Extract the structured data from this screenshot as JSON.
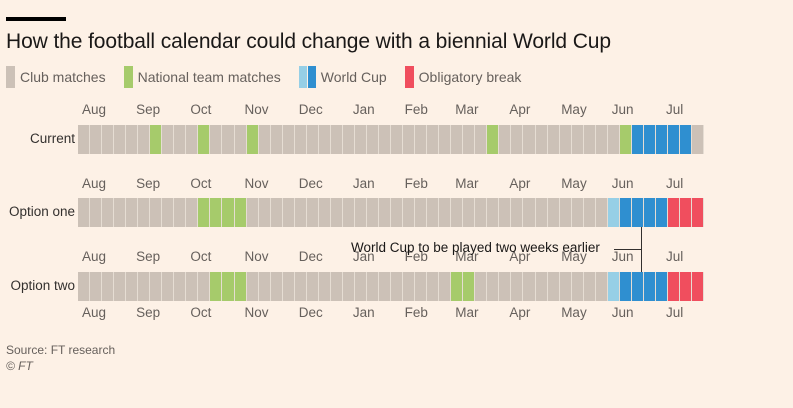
{
  "title": "How the football calendar could change with a biennial World Cup",
  "legend": [
    {
      "key": "club",
      "label": "Club matches",
      "colors": [
        "#ccc1b7"
      ]
    },
    {
      "key": "national",
      "label": "National team matches",
      "colors": [
        "#a6cb6b"
      ]
    },
    {
      "key": "worldcup",
      "label": "World Cup",
      "colors": [
        "#96cfe6",
        "#2f8fd0"
      ]
    },
    {
      "key": "break",
      "label": "Obligatory break",
      "colors": [
        "#f04e5e"
      ]
    }
  ],
  "source": "Source: FT research",
  "copyright": "© FT",
  "annotation": "World Cup to be played two weeks earlier",
  "chart_data": {
    "type": "heatmap",
    "title": "How the football calendar could change with a biennial World Cup",
    "unit": "week",
    "weeks": 52,
    "months": [
      "Aug",
      "Sep",
      "Oct",
      "Nov",
      "Dec",
      "Jan",
      "Feb",
      "Mar",
      "Apr",
      "May",
      "Jun",
      "Jul"
    ],
    "month_start_week": [
      0,
      4.5,
      9,
      13.5,
      18,
      22.5,
      26.8,
      31,
      35.5,
      39.8,
      44,
      48.5
    ],
    "categories": {
      "C": "Club matches",
      "N": "National team matches",
      "W": "World Cup (light)",
      "X": "World Cup",
      "B": "Obligatory break"
    },
    "colors": {
      "C": "#ccc1b7",
      "N": "#a6cb6b",
      "W": "#96cfe6",
      "X": "#2f8fd0",
      "B": "#f04e5e"
    },
    "series": [
      {
        "name": "Current",
        "weeks": "CCCCCCNCCCNCCCNCCCCCCCCCCCCCCCCCCCNCCCCCCCCCCNXXXXXC"
      },
      {
        "name": "Option one",
        "weeks": "CCCCCCCCCCNNNNCCCCCCCCCCCCCCCCCCCCCCCCCCCCCCWXXXXBBB"
      },
      {
        "name": "Option two",
        "weeks": "CCCCCCCCCCCNNNCCCCCCCCCCCCCCCCCNNCCCCCCCCCCCWXXXXBBB"
      }
    ],
    "annotations": [
      {
        "text": "World Cup to be played two weeks earlier",
        "between": [
          "Option one",
          "Option two"
        ],
        "week": 47
      }
    ]
  }
}
